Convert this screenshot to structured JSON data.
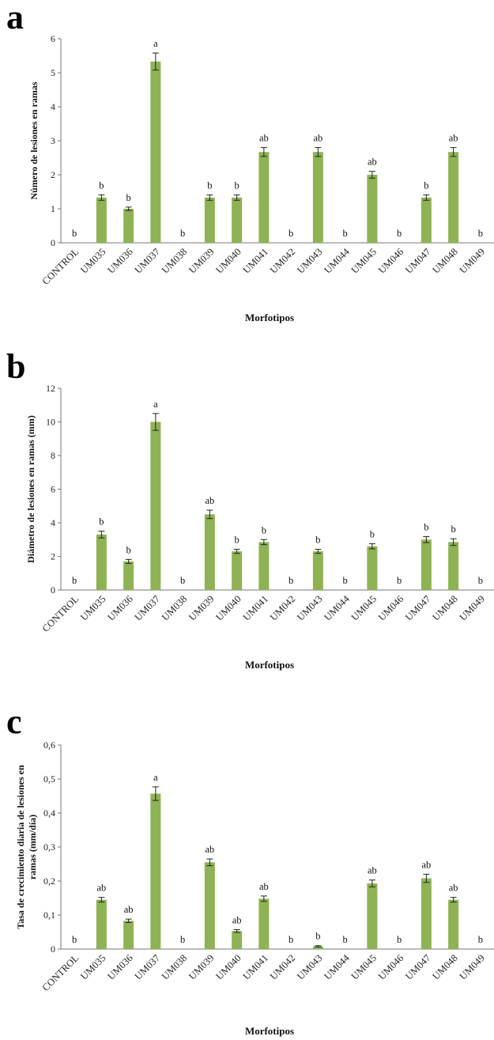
{
  "chart_data": [
    {
      "type": "bar",
      "panel": "a",
      "categories": [
        "CONTROL",
        "UM035",
        "UM036",
        "UM037",
        "UM038",
        "UM039",
        "UM040",
        "UM041",
        "UM042",
        "UM043",
        "UM044",
        "UM045",
        "UM046",
        "UM047",
        "UM048",
        "UM049"
      ],
      "values": [
        0,
        1.33,
        1.0,
        5.33,
        0,
        1.33,
        1.33,
        2.67,
        0,
        2.67,
        0,
        2.0,
        0,
        1.33,
        2.67,
        0
      ],
      "errors": [
        0,
        0.08,
        0.05,
        0.25,
        0,
        0.08,
        0.08,
        0.13,
        0,
        0.13,
        0,
        0.1,
        0,
        0.08,
        0.13,
        0
      ],
      "significance": [
        "b",
        "b",
        "b",
        "a",
        "b",
        "b",
        "b",
        "ab",
        "b",
        "ab",
        "b",
        "ab",
        "b",
        "b",
        "ab",
        "b"
      ],
      "ylabel": "Número de lesiones en ramas",
      "xlabel": "Morfotipos",
      "ylim": [
        0,
        6
      ],
      "yticks": [
        "0",
        "1",
        "2",
        "3",
        "4",
        "5",
        "6"
      ],
      "grid": false,
      "color": "#8db354"
    },
    {
      "type": "bar",
      "panel": "b",
      "categories": [
        "CONTROL",
        "UM035",
        "UM036",
        "UM037",
        "UM038",
        "UM039",
        "UM040",
        "UM041",
        "UM042",
        "UM043",
        "UM044",
        "UM045",
        "UM046",
        "UM047",
        "UM048",
        "UM049"
      ],
      "values": [
        0,
        3.3,
        1.7,
        10.0,
        0,
        4.5,
        2.3,
        2.85,
        0,
        2.3,
        0,
        2.6,
        0,
        3.0,
        2.85,
        0
      ],
      "errors": [
        0,
        0.2,
        0.12,
        0.5,
        0,
        0.25,
        0.12,
        0.15,
        0,
        0.12,
        0,
        0.15,
        0,
        0.18,
        0.2,
        0
      ],
      "significance": [
        "b",
        "b",
        "b",
        "a",
        "b",
        "ab",
        "b",
        "b",
        "b",
        "b",
        "b",
        "b",
        "b",
        "b",
        "b",
        "b"
      ],
      "ylabel": "Diámetro de lesiones en ramas (mm)",
      "xlabel": "Morfotipos",
      "ylim": [
        0,
        12
      ],
      "yticks": [
        "0",
        "2",
        "4",
        "6",
        "8",
        "10",
        "12"
      ],
      "grid": false,
      "color": "#8db354"
    },
    {
      "type": "bar",
      "panel": "c",
      "categories": [
        "CONTROL",
        "UM035",
        "UM036",
        "UM037",
        "UM038",
        "UM039",
        "UM040",
        "UM041",
        "UM042",
        "UM043",
        "UM044",
        "UM045",
        "UM046",
        "UM047",
        "UM048",
        "UM049"
      ],
      "values": [
        0,
        0.145,
        0.083,
        0.457,
        0,
        0.255,
        0.053,
        0.148,
        0,
        0.008,
        0,
        0.193,
        0,
        0.208,
        0.145,
        0
      ],
      "errors": [
        0,
        0.007,
        0.005,
        0.02,
        0,
        0.01,
        0.004,
        0.008,
        0,
        0.002,
        0,
        0.01,
        0,
        0.012,
        0.007,
        0
      ],
      "significance": [
        "b",
        "ab",
        "ab",
        "a",
        "b",
        "ab",
        "ab",
        "ab",
        "b",
        "b",
        "b",
        "ab",
        "b",
        "ab",
        "ab",
        "b"
      ],
      "ylabel": "Tasa de crecimiento diaria de lesiones en ramas (mm/día)",
      "ylabel_lines": [
        "Tasa de crecimiento diaria  de lesiones en",
        "ramas  (mm/día)"
      ],
      "xlabel": "Morfotipos",
      "ylim": [
        0,
        0.6
      ],
      "yticks": [
        "0",
        "0,1",
        "0,2",
        "0,3",
        "0,4",
        "0,5",
        "0,6"
      ],
      "grid": false,
      "color": "#8db354"
    }
  ]
}
